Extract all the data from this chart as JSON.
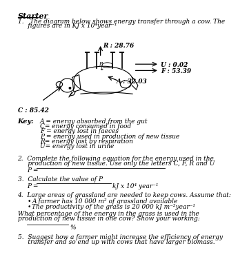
{
  "title": "Starter",
  "q1_line1": "1.   The diagram below shows energy transfer through a cow. The",
  "q1_line2": "     figures are in KJ x 10⁴year⁻¹",
  "cow_labels": {
    "R": "R : 28.76",
    "U": "U : 0.02",
    "F": "F : 53.39",
    "A": "A : 32.03",
    "C": "C : 85.42"
  },
  "key_title": "Key:",
  "key_lines": [
    "A = energy absorbed from the gut",
    "C= energy consumed in food",
    "F = energy lost in faeces",
    "P = energy used in production of new tissue",
    "R= energy lost by respiration",
    "U= energy lost in urine"
  ],
  "q2_line1": "2.  Complete the following equation for the energy used in the",
  "q2_line2": "     production of new tissue. Use only the letters C, F, R and U",
  "q2_answer_label": "P = ",
  "q3_text": "3.  Calculate the value of P",
  "q3_answer_label": "P = ",
  "q3_units": "kJ x 10⁴ year⁻¹",
  "q4_line1": "4.  Large areas of grassland are needed to keep cows. Assume that:",
  "q4_b1": "A farmer has 10 000 m² of grassland available",
  "q4_b2": "The productivity of the grass is 20 000 kJ m⁻²year⁻¹",
  "q4_what1": "What percentage of the energy in the grass is used in the",
  "q4_what2": "production of new tissue in one cow? Show your working:",
  "q4_percent": "%",
  "q5_line1": "5.  Suggest how a farmer might increase the efficiency of energy",
  "q5_line2": "     transfer and so end up with cows that have larger biomass.",
  "bg_color": "#ffffff",
  "text_color": "#000000"
}
